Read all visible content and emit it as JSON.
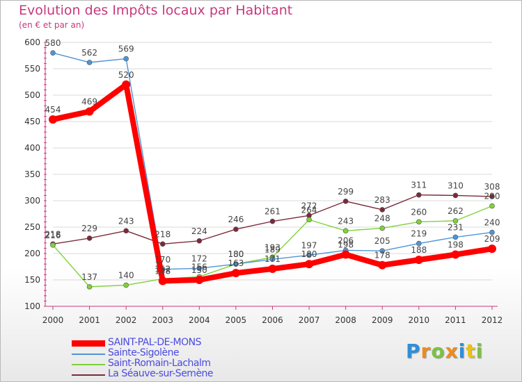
{
  "chart_data": {
    "type": "line",
    "title": "Evolution des Impôts locaux par Habitant",
    "subtitle": "(en € et par an)",
    "xlabel": "",
    "ylabel": "",
    "ylim": [
      100,
      600
    ],
    "yticks": [
      100,
      150,
      200,
      250,
      300,
      350,
      400,
      450,
      500,
      550,
      600
    ],
    "categories": [
      "2000",
      "2001",
      "2002",
      "2003",
      "2004",
      "2005",
      "2006",
      "2007",
      "2008",
      "2009",
      "2010",
      "2011",
      "2012"
    ],
    "grid": "horizontal",
    "legend_position": "bottom-left",
    "series": [
      {
        "name": "SAINT-PAL-DE-MONS",
        "color": "#ff0000",
        "values": [
          454,
          469,
          520,
          148,
          150,
          163,
          171,
          180,
          198,
          178,
          188,
          198,
          209
        ]
      },
      {
        "name": "Sainte-Sigolène",
        "color": "#4f94d4",
        "values": [
          580,
          562,
          569,
          170,
          172,
          180,
          189,
          197,
          206,
          205,
          219,
          231,
          240
        ]
      },
      {
        "name": "Saint-Romain-Lachalm",
        "color": "#7fd23a",
        "values": [
          216,
          137,
          140,
          152,
          156,
          180,
          193,
          264,
          243,
          248,
          260,
          262,
          290
        ]
      },
      {
        "name": "La Séauve-sur-Semène",
        "color": "#7a2a3a",
        "values": [
          218,
          229,
          243,
          218,
          224,
          246,
          261,
          272,
          299,
          283,
          311,
          310,
          308
        ]
      }
    ]
  },
  "logo": {
    "letters": [
      "P",
      "r",
      "o",
      "x",
      "i",
      "t",
      "i"
    ],
    "colors": [
      "#2f8fd8",
      "#f08a1c",
      "#7cc242",
      "#f08a1c",
      "#2f8fd8",
      "#e8c31a",
      "#7cc242"
    ]
  }
}
